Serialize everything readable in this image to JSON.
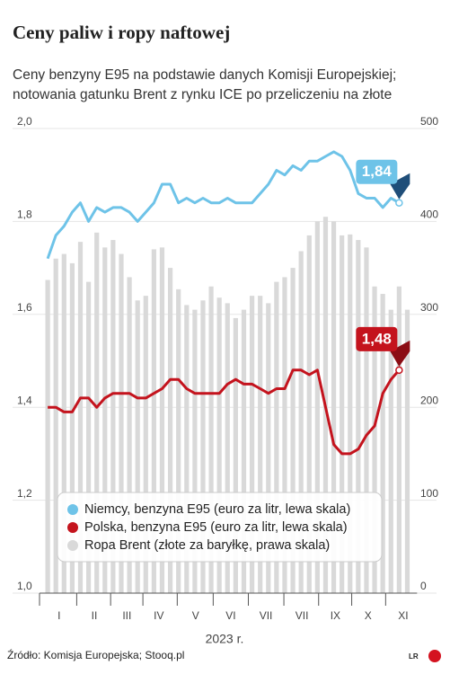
{
  "chart_data": {
    "type": "bar-line",
    "title": "Ceny paliw i ropy naftowej",
    "subtitle": [
      "Ceny benzyny E95 na podstawie danych Komisji Europejskiej;",
      "notowania gatunku Brent z rynku ICE po przeliczeniu na złote"
    ],
    "xlabel": "2023 r.",
    "source": "Źródło: Komisja Europejska; Stooq.pl",
    "logo": "LR",
    "xlim": [
      0,
      45.5
    ],
    "xticks": [
      {
        "value": 2.4,
        "label": "I"
      },
      {
        "value": 6.7,
        "label": "II"
      },
      {
        "value": 10.7,
        "label": "III"
      },
      {
        "value": 14.6,
        "label": "IV"
      },
      {
        "value": 19.1,
        "label": "V"
      },
      {
        "value": 23.4,
        "label": "VI"
      },
      {
        "value": 27.7,
        "label": "VII"
      },
      {
        "value": 32.1,
        "label": "VII"
      },
      {
        "value": 36.2,
        "label": "IX"
      },
      {
        "value": 40.2,
        "label": "X"
      },
      {
        "value": 44.5,
        "label": "XI"
      }
    ],
    "ylim": [
      1.0,
      2.0
    ],
    "yticks": [
      {
        "value": 1.0,
        "label": "1,0"
      },
      {
        "value": 1.2,
        "label": "1,2"
      },
      {
        "value": 1.4,
        "label": "1,4"
      },
      {
        "value": 1.6,
        "label": "1,6"
      },
      {
        "value": 1.8,
        "label": "1,8"
      },
      {
        "value": 2.0,
        "label": "2,0"
      }
    ],
    "y2lim": [
      0,
      500
    ],
    "y2ticks": [
      0,
      100,
      200,
      300,
      400,
      500
    ],
    "series": [
      {
        "name": "Niemcy, benzyna E95 (euro za litr, lewa skala)",
        "type": "line",
        "color": "#6ec3e8",
        "end_label": "1,84",
        "x": [
          1,
          2,
          3,
          4,
          5,
          6,
          7,
          8,
          9,
          10,
          11,
          12,
          13,
          14,
          15,
          16,
          17,
          18,
          19,
          20,
          21,
          22,
          23,
          24,
          25,
          26,
          27,
          28,
          29,
          30,
          31,
          32,
          33,
          34,
          35,
          36,
          37,
          38,
          39,
          40,
          41,
          42,
          43,
          44
        ],
        "values": [
          1.72,
          1.77,
          1.79,
          1.82,
          1.84,
          1.8,
          1.83,
          1.82,
          1.83,
          1.83,
          1.82,
          1.8,
          1.82,
          1.84,
          1.88,
          1.88,
          1.84,
          1.85,
          1.84,
          1.85,
          1.84,
          1.84,
          1.85,
          1.84,
          1.84,
          1.84,
          1.86,
          1.88,
          1.91,
          1.9,
          1.92,
          1.91,
          1.93,
          1.93,
          1.94,
          1.95,
          1.94,
          1.91,
          1.86,
          1.85,
          1.85,
          1.83,
          1.85,
          1.84
        ]
      },
      {
        "name": "Polska, benzyna E95 (euro za litr, lewa skala)",
        "type": "line",
        "color": "#c4131d",
        "end_label": "1,48",
        "x": [
          1,
          2,
          3,
          4,
          5,
          6,
          7,
          8,
          9,
          10,
          11,
          12,
          13,
          14,
          15,
          16,
          17,
          18,
          19,
          20,
          21,
          22,
          23,
          24,
          25,
          26,
          27,
          28,
          29,
          30,
          31,
          32,
          33,
          34,
          35,
          36,
          37,
          38,
          39,
          40,
          41,
          42,
          43,
          44
        ],
        "values": [
          1.4,
          1.4,
          1.39,
          1.39,
          1.42,
          1.42,
          1.4,
          1.42,
          1.43,
          1.43,
          1.43,
          1.42,
          1.42,
          1.43,
          1.44,
          1.46,
          1.46,
          1.44,
          1.43,
          1.43,
          1.43,
          1.43,
          1.45,
          1.46,
          1.45,
          1.45,
          1.44,
          1.43,
          1.44,
          1.44,
          1.48,
          1.48,
          1.47,
          1.48,
          1.4,
          1.32,
          1.3,
          1.3,
          1.31,
          1.34,
          1.36,
          1.43,
          1.46,
          1.48
        ]
      },
      {
        "name": "Ropa Brent (złote za baryłkę, prawa skala)",
        "type": "bar",
        "axis": "y2",
        "color": "#d9d9d9",
        "x": [
          1,
          2,
          3,
          4,
          5,
          6,
          7,
          8,
          9,
          10,
          11,
          12,
          13,
          14,
          15,
          16,
          17,
          18,
          19,
          20,
          21,
          22,
          23,
          24,
          25,
          26,
          27,
          28,
          29,
          30,
          31,
          32,
          33,
          34,
          35,
          36,
          37,
          38,
          39,
          40,
          41,
          42,
          43,
          44,
          45
        ],
        "values": [
          337,
          360,
          365,
          355,
          378,
          335,
          388,
          372,
          380,
          365,
          340,
          315,
          320,
          370,
          372,
          350,
          327,
          310,
          305,
          315,
          330,
          318,
          312,
          296,
          305,
          320,
          320,
          312,
          335,
          340,
          350,
          368,
          385,
          400,
          405,
          400,
          385,
          386,
          380,
          372,
          330,
          322,
          305,
          330,
          305
        ]
      }
    ]
  }
}
